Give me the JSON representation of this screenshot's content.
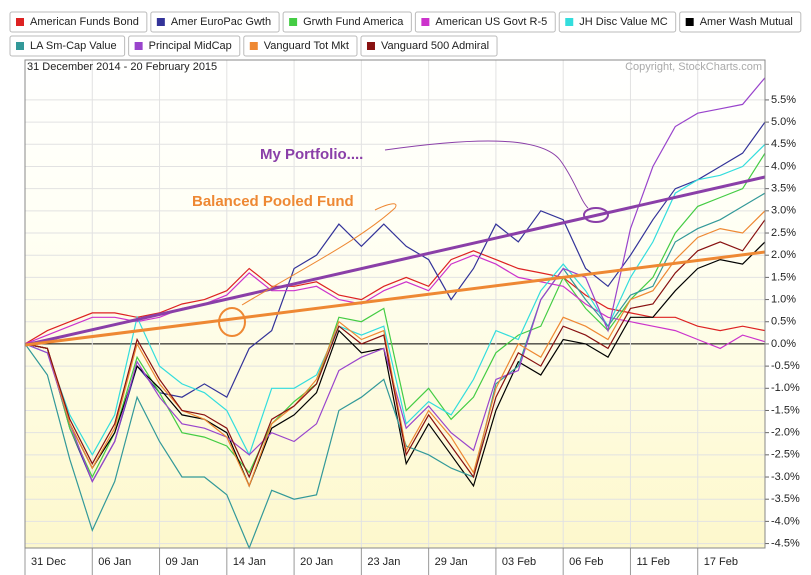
{
  "chart_data": {
    "type": "line",
    "date_range": "31 December 2014 - 20 February 2015",
    "copyright": "Copyright, StockCharts.com",
    "annotations": [
      "My Portfolio....",
      "Balanced Pooled Fund"
    ],
    "categories": [
      "31 Dec",
      null,
      null,
      "06 Jan",
      null,
      null,
      "09 Jan",
      null,
      null,
      "14 Jan",
      null,
      null,
      "20 Jan",
      null,
      null,
      "23 Jan",
      null,
      null,
      "29 Jan",
      null,
      null,
      "03 Feb",
      null,
      null,
      "06 Feb",
      null,
      null,
      "11 Feb",
      null,
      null,
      "17 Feb",
      null,
      null,
      null
    ],
    "ylim": [
      -4.6,
      6.4
    ],
    "yticks": [
      {
        "value": 5.5,
        "label": "5.5%"
      },
      {
        "value": 5,
        "label": "5.0%"
      },
      {
        "value": 4.5,
        "label": "4.5%"
      },
      {
        "value": 4,
        "label": "4.0%"
      },
      {
        "value": 3.5,
        "label": "3.5%"
      },
      {
        "value": 3,
        "label": "3.0%"
      },
      {
        "value": 2.5,
        "label": "2.5%"
      },
      {
        "value": 2,
        "label": "2.0%"
      },
      {
        "value": 1.5,
        "label": "1.5%"
      },
      {
        "value": 1,
        "label": "1.0%"
      },
      {
        "value": 0.5,
        "label": "0.5%"
      },
      {
        "value": 0,
        "label": "0.0%"
      },
      {
        "value": -0.5,
        "label": "-0.5%"
      },
      {
        "value": -1,
        "label": "-1.0%"
      },
      {
        "value": -1.5,
        "label": "-1.5%"
      },
      {
        "value": -2,
        "label": "-2.0%"
      },
      {
        "value": -2.5,
        "label": "-2.5%"
      },
      {
        "value": -3,
        "label": "-3.0%"
      },
      {
        "value": -3.5,
        "label": "-3.5%"
      },
      {
        "value": -4,
        "label": "-4.0%"
      },
      {
        "value": -4.5,
        "label": "-4.5%"
      }
    ],
    "grid": true,
    "series": [
      {
        "name": "American Funds Bond",
        "color": "#dd2222",
        "values": [
          0,
          0.3,
          0.5,
          0.7,
          0.7,
          0.6,
          0.7,
          0.9,
          1.0,
          1.2,
          1.7,
          1.3,
          1.3,
          1.4,
          1.1,
          1.0,
          1.3,
          1.5,
          1.3,
          1.9,
          2.1,
          1.9,
          1.7,
          1.6,
          1.5,
          1.1,
          0.8,
          0.7,
          0.6,
          0.6,
          0.4,
          0.3,
          0.4,
          0.3
        ]
      },
      {
        "name": "Amer EuroPac Gwth",
        "color": "#333399",
        "values": [
          0,
          -0.1,
          -1.9,
          -3.1,
          -2.2,
          -0.5,
          -1.1,
          -1.2,
          -0.9,
          -1.2,
          -0.1,
          0.3,
          1.7,
          2.0,
          2.7,
          2.2,
          2.7,
          2.2,
          1.9,
          1.0,
          1.7,
          2.7,
          2.3,
          3.0,
          2.8,
          1.7,
          1.3,
          2.0,
          2.8,
          3.5,
          3.7,
          4.0,
          4.3,
          5.0
        ]
      },
      {
        "name": "Grwth Fund America",
        "color": "#44cc44",
        "values": [
          0,
          -0.1,
          -1.9,
          -3.0,
          -2.0,
          -0.3,
          -1.1,
          -2.0,
          -2.1,
          -2.3,
          -2.9,
          -1.8,
          -1.3,
          -0.9,
          0.6,
          0.5,
          0.8,
          -1.5,
          -1.0,
          -1.7,
          -1.2,
          -0.2,
          0.2,
          0.4,
          1.5,
          0.8,
          0.3,
          1.0,
          1.5,
          2.5,
          3.1,
          3.3,
          3.5,
          4.3
        ]
      },
      {
        "name": "American US Govt R-5",
        "color": "#cc33cc",
        "values": [
          0,
          0.2,
          0.4,
          0.6,
          0.6,
          0.5,
          0.6,
          0.8,
          0.9,
          1.1,
          1.6,
          1.2,
          1.2,
          1.3,
          1.0,
          0.9,
          1.2,
          1.4,
          1.2,
          1.8,
          2.0,
          1.8,
          1.5,
          1.4,
          1.3,
          0.9,
          0.6,
          0.5,
          0.4,
          0.3,
          0.1,
          -0.1,
          0.2,
          0.05
        ]
      },
      {
        "name": "JH Disc Value MC",
        "color": "#33dddd",
        "values": [
          0,
          -0.2,
          -1.6,
          -2.5,
          -1.6,
          0.6,
          -0.5,
          -0.9,
          -1.1,
          -1.5,
          -2.5,
          -1.0,
          -1.0,
          -0.7,
          0.4,
          0.2,
          0.4,
          -1.8,
          -1.3,
          -1.6,
          -0.8,
          0.3,
          0.1,
          1.2,
          1.8,
          1.2,
          0.4,
          1.5,
          2.3,
          3.4,
          3.7,
          3.8,
          4.0,
          4.5
        ]
      },
      {
        "name": "Amer Wash Mutual",
        "color": "#000000",
        "values": [
          0,
          -0.1,
          -1.8,
          -2.8,
          -2.0,
          -0.5,
          -1.0,
          -1.6,
          -1.7,
          -2.0,
          -3.2,
          -1.9,
          -1.6,
          -1.1,
          0.3,
          -0.2,
          -0.1,
          -2.7,
          -1.8,
          -2.5,
          -3.2,
          -1.5,
          -0.4,
          -0.7,
          0.1,
          0.0,
          -0.3,
          0.6,
          0.6,
          1.2,
          1.7,
          1.9,
          1.8,
          2.3
        ]
      },
      {
        "name": "LA Sm-Cap Value",
        "color": "#339999",
        "values": [
          0,
          -0.7,
          -2.6,
          -4.2,
          -3.1,
          -1.2,
          -2.2,
          -3.0,
          -3.0,
          -3.4,
          -4.6,
          -3.3,
          -3.5,
          -3.4,
          -1.5,
          -1.2,
          -0.8,
          -2.3,
          -2.5,
          -2.8,
          -3.0,
          -0.9,
          -0.5,
          1.0,
          1.7,
          1.0,
          0.4,
          1.1,
          1.3,
          2.3,
          2.6,
          2.8,
          3.1,
          3.4
        ]
      },
      {
        "name": "Principal MidCap",
        "color": "#9944cc",
        "values": [
          0,
          -0.2,
          -1.8,
          -3.1,
          -2.2,
          -0.4,
          -1.2,
          -1.8,
          -1.9,
          -2.1,
          -2.5,
          -2.0,
          -2.2,
          -1.8,
          -0.6,
          -0.3,
          -0.1,
          -1.9,
          -1.4,
          -2.0,
          -2.4,
          -0.8,
          -0.6,
          1.0,
          1.7,
          1.5,
          0.3,
          2.6,
          4.0,
          4.9,
          5.2,
          5.3,
          5.4,
          6.0
        ]
      },
      {
        "name": "Vanguard Tot Mkt",
        "color": "#ee8833",
        "values": [
          0,
          -0.1,
          -1.8,
          -2.8,
          -1.9,
          0.0,
          -0.9,
          -1.5,
          -1.7,
          -2.1,
          -3.2,
          -1.8,
          -1.4,
          -0.8,
          0.5,
          0.1,
          0.3,
          -2.4,
          -1.5,
          -2.1,
          -2.9,
          -1.0,
          0.0,
          -0.3,
          0.6,
          0.4,
          0.1,
          1.0,
          1.2,
          1.9,
          2.4,
          2.6,
          2.5,
          3.0
        ]
      },
      {
        "name": "Vanguard 500 Admiral",
        "color": "#881111",
        "values": [
          0,
          -0.1,
          -1.7,
          -2.7,
          -1.8,
          0.1,
          -0.8,
          -1.5,
          -1.6,
          -1.9,
          -3.0,
          -1.7,
          -1.4,
          -0.9,
          0.4,
          0.0,
          0.2,
          -2.5,
          -1.6,
          -2.3,
          -3.0,
          -1.2,
          -0.2,
          -0.5,
          0.4,
          0.2,
          -0.1,
          0.8,
          0.9,
          1.6,
          2.1,
          2.3,
          2.1,
          2.8
        ]
      }
    ]
  }
}
